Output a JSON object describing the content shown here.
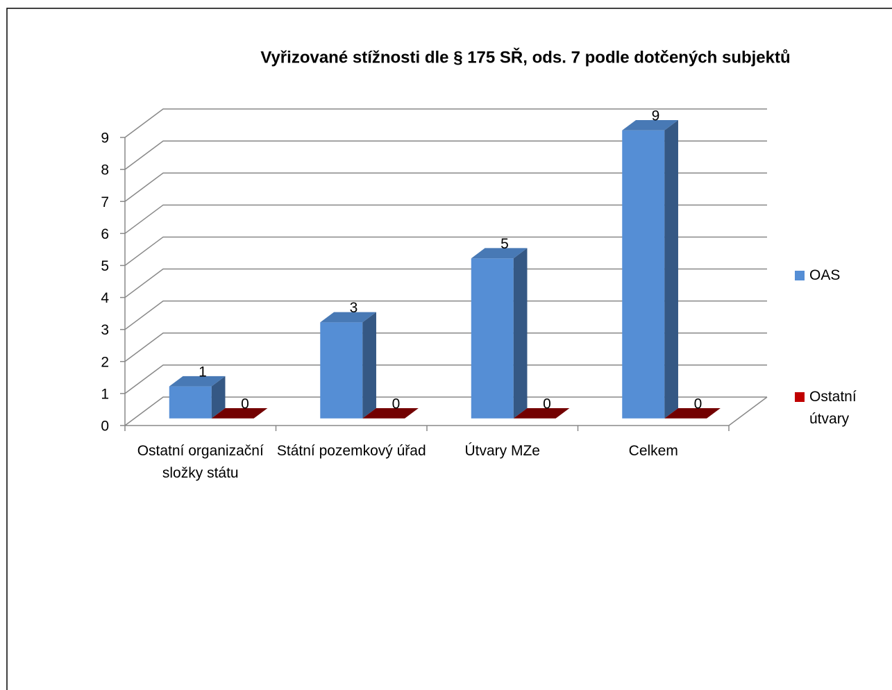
{
  "chart_data": {
    "type": "bar3d",
    "title": "Vyřizované stížnosti dle § 175 SŘ, ods. 7 podle dotčených subjektů",
    "categories": [
      "Ostatní organizační složky státu",
      "Státní pozemkový úřad",
      "Útvary MZe",
      "Celkem"
    ],
    "series": [
      {
        "name": "OAS",
        "color": "#558ed5",
        "values": [
          1,
          3,
          5,
          9
        ]
      },
      {
        "name": "Ostatní útvary",
        "color": "#c00000",
        "values": [
          0,
          0,
          0,
          0
        ]
      }
    ],
    "ylim": [
      0,
      9
    ],
    "yticks": [
      0,
      1,
      2,
      3,
      4,
      5,
      6,
      7,
      8,
      9
    ],
    "grid": true,
    "legend": "right"
  }
}
